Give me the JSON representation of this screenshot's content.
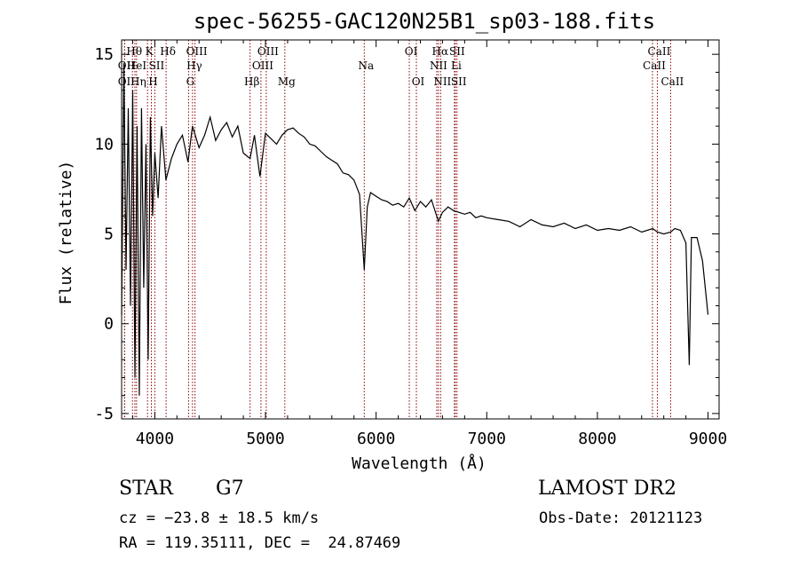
{
  "chart_data": {
    "type": "line",
    "title": "spec-56255-GAC120N25B1_sp03-188.fits",
    "xlabel": "Wavelength (Å)",
    "ylabel": "Flux (relative)",
    "xlim": [
      3700,
      9100
    ],
    "ylim": [
      -5.3,
      15.8
    ],
    "xticks": [
      4000,
      5000,
      6000,
      7000,
      8000,
      9000
    ],
    "yticks": [
      -5,
      0,
      5,
      10,
      15
    ],
    "line_color": "#000000",
    "marker_color": "#8b0000",
    "grid": false,
    "series": [
      {
        "x": [
          3700,
          3720,
          3740,
          3760,
          3780,
          3800,
          3820,
          3840,
          3860,
          3880,
          3900,
          3920,
          3940,
          3960,
          3980,
          4000,
          4030,
          4060,
          4100,
          4150,
          4200,
          4250,
          4300,
          4340,
          4400,
          4450,
          4500,
          4550,
          4600,
          4650,
          4700,
          4750,
          4800,
          4861,
          4900,
          4950,
          5000,
          5050,
          5100,
          5150,
          5200,
          5250,
          5300,
          5350,
          5400,
          5450,
          5500,
          5550,
          5600,
          5650,
          5700,
          5750,
          5800,
          5850,
          5893,
          5920,
          5950,
          6000,
          6050,
          6100,
          6150,
          6200,
          6250,
          6300,
          6350,
          6400,
          6450,
          6500,
          6563,
          6600,
          6650,
          6700,
          6750,
          6800,
          6850,
          6900,
          6950,
          7000,
          7100,
          7200,
          7300,
          7400,
          7500,
          7600,
          7700,
          7800,
          7900,
          8000,
          8100,
          8200,
          8300,
          8400,
          8500,
          8542,
          8600,
          8662,
          8700,
          8750,
          8800,
          8830,
          8850,
          8900,
          8950,
          9000
        ],
        "y": [
          0.5,
          14.5,
          3,
          12,
          1,
          13,
          -3,
          11,
          -4,
          12,
          2,
          10,
          -2,
          11.5,
          6,
          9.5,
          7,
          11,
          8,
          9.2,
          10,
          10.5,
          9,
          11,
          9.8,
          10.5,
          11.5,
          10.2,
          10.8,
          11.2,
          10.4,
          11,
          9.5,
          9.2,
          10.5,
          8.2,
          10.6,
          10.3,
          10,
          10.5,
          10.8,
          10.9,
          10.6,
          10.4,
          10,
          9.9,
          9.6,
          9.3,
          9.1,
          8.9,
          8.4,
          8.3,
          8,
          7.2,
          3,
          6.5,
          7.3,
          7.1,
          6.9,
          6.8,
          6.6,
          6.7,
          6.5,
          7,
          6.3,
          6.8,
          6.5,
          6.9,
          5.7,
          6.2,
          6.5,
          6.3,
          6.2,
          6.1,
          6.2,
          5.9,
          6,
          5.9,
          5.8,
          5.7,
          5.4,
          5.8,
          5.5,
          5.4,
          5.6,
          5.3,
          5.5,
          5.2,
          5.3,
          5.2,
          5.4,
          5.1,
          5.3,
          5.1,
          5,
          5.1,
          5.3,
          5.2,
          4.5,
          -2.3,
          4.8,
          4.8,
          3.5,
          0.5
        ]
      }
    ],
    "lines": [
      {
        "label": "Hθ",
        "x": 3798,
        "row": 1
      },
      {
        "label": "OII",
        "x": 3727,
        "row": 2
      },
      {
        "label": "HeI",
        "x": 3820,
        "row": 2
      },
      {
        "label": "OII",
        "x": 3727,
        "row": 3
      },
      {
        "label": "Hη",
        "x": 3835,
        "row": 3
      },
      {
        "label": "K",
        "x": 3934,
        "row": 1
      },
      {
        "label": "SII",
        "x": 4000,
        "row": 2
      },
      {
        "label": "H",
        "x": 3969,
        "row": 3
      },
      {
        "label": "Hδ",
        "x": 4102,
        "row": 1
      },
      {
        "label": "OIII",
        "x": 4363,
        "row": 1
      },
      {
        "label": "Hγ",
        "x": 4341,
        "row": 2
      },
      {
        "label": "G",
        "x": 4305,
        "row": 3
      },
      {
        "label": "OIII",
        "x": 5007,
        "row": 1
      },
      {
        "label": "OIII",
        "x": 4959,
        "row": 2
      },
      {
        "label": "Hβ",
        "x": 4861,
        "row": 3
      },
      {
        "label": "Mg",
        "x": 5175,
        "row": 3
      },
      {
        "label": "Na",
        "x": 5893,
        "row": 2
      },
      {
        "label": "OI",
        "x": 6300,
        "row": 1
      },
      {
        "label": "OI",
        "x": 6364,
        "row": 3
      },
      {
        "label": "Hα",
        "x": 6563,
        "row": 1
      },
      {
        "label": "SII",
        "x": 6716,
        "row": 1
      },
      {
        "label": "NII",
        "x": 6548,
        "row": 2
      },
      {
        "label": "Li",
        "x": 6708,
        "row": 2
      },
      {
        "label": "NII",
        "x": 6583,
        "row": 3
      },
      {
        "label": "SII",
        "x": 6731,
        "row": 3
      },
      {
        "label": "CaII",
        "x": 8542,
        "row": 1
      },
      {
        "label": "CaII",
        "x": 8498,
        "row": 2
      },
      {
        "label": "CaII",
        "x": 8662,
        "row": 3
      }
    ]
  },
  "info": {
    "class": "STAR",
    "subclass": "G7",
    "survey": "LAMOST DR2",
    "redshift_text": "cz = −23.8 ± 18.5 km/s",
    "obs_date_text": "Obs-Date: 20121123",
    "coords_text": "RA = 119.35111, DEC =  24.87469"
  }
}
